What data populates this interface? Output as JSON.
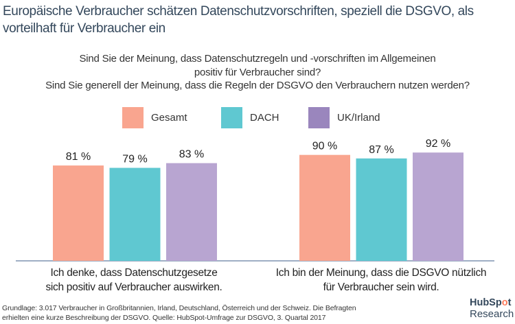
{
  "title": "Europäische Verbraucher schätzen Datenschutzvorschriften, speziell die DSGVO, als vorteilhaft für Verbraucher ein",
  "question_lines": [
    "Sind Sie der Meinung, dass Datenschutzregeln und -vorschriften im Allgemeinen",
    "positiv für Verbraucher sind?",
    "Sind Sie generell der Meinung, dass die Regeln der DSGVO den Verbrauchern nutzen werden?"
  ],
  "chart_data": {
    "type": "bar",
    "title": "Europäische Verbraucher schätzen Datenschutzvorschriften, speziell die DSGVO, als vorteilhaft für Verbraucher ein",
    "categories": [
      "Ich denke, dass Datenschutzgesetze sich positiv auf Verbraucher auswirken.",
      "Ich bin der Meinung, dass die DSGVO nützlich für Verbraucher sein wird."
    ],
    "category_lines": [
      [
        "Ich denke, dass Datenschutzgesetze",
        "sich positiv auf Verbraucher auswirken."
      ],
      [
        "Ich bin der Meinung, dass die DSGVO nützlich",
        "für Verbraucher sein wird."
      ]
    ],
    "series": [
      {
        "name": "Gesamt",
        "color": "#f9a58f",
        "values": [
          81,
          90
        ]
      },
      {
        "name": "DACH",
        "color": "#5fc8d1",
        "values": [
          79,
          87
        ]
      },
      {
        "name": "UK/Irland",
        "color": "#b8a5d1",
        "values": [
          83,
          92
        ]
      }
    ],
    "value_suffix": " %",
    "ylim": [
      0,
      100
    ],
    "xlabel": "",
    "ylabel": "",
    "grid": false,
    "legend": "top-center"
  },
  "legend_colors": [
    "#f9a58f",
    "#5fc8d1",
    "#9a86bd"
  ],
  "baseline_color": "#9eaec4",
  "footnote_lines": [
    "Grundlage: 3.017 Verbraucher in Großbritannien, Irland, Deutschland, Österreich und der Schweiz. Die Befragten",
    "erhielten eine kurze Beschreibung der DSGVO. Quelle: HubSpot-Umfrage zur DSGVO, 3. Quartal 2017"
  ],
  "logo": {
    "top_pre": "HubSp",
    "top_o": "o",
    "top_post": "t",
    "bottom": "Research"
  }
}
